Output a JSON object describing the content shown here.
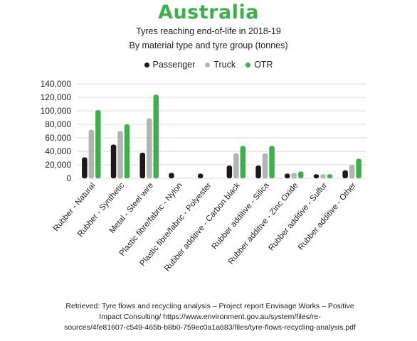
{
  "chart_data": {
    "type": "bar",
    "title": "Australia",
    "subtitle_line1": "Tyres reaching end-of-life in 2018-19",
    "subtitle_line2": "By material type and tyre group (tonnes)",
    "categories": [
      "Rubber - Natural",
      "Rubber - Synthetic",
      "Metal - Steel wire",
      "Plastic fibre/fabric - Nylon",
      "Plastic fibre/fabric - Polyester",
      "Rubber additive - Carbon black",
      "Rubber additive - Silica",
      "Rubber additive - Zinc Oxide",
      "Rubber additive - Sulfur",
      "Rubber additive - Other"
    ],
    "series": [
      {
        "name": "Passenger",
        "color": "#1a1a1a",
        "values": [
          31000,
          50000,
          38000,
          8000,
          7000,
          19000,
          19000,
          7000,
          6000,
          12000
        ]
      },
      {
        "name": "Truck",
        "color": "#b3b3b3",
        "values": [
          72000,
          70000,
          89000,
          0,
          0,
          37000,
          37000,
          8000,
          6000,
          20000
        ]
      },
      {
        "name": "OTR",
        "color": "#3cb04a",
        "values": [
          101000,
          80000,
          124000,
          0,
          0,
          48000,
          48000,
          10000,
          6000,
          29000
        ]
      }
    ],
    "yticks": [
      "0",
      "20,000",
      "40,000",
      "60,000",
      "80,000",
      "100,000",
      "120,000",
      "140,000"
    ],
    "ylim": [
      0,
      140000
    ],
    "grid": true,
    "legend_position": "top-center"
  },
  "source_line1": "Retrieved: Tyre flows and recycling analysis – Project report Envisage Works – Positive",
  "source_line2": "Impact Consulting/ https://www.environment.gov.au/system/files/re-",
  "source_line3": "sources/4fe81607-c549-465b-b8b0-759ec0a1a683/files/tyre-flows-recycling-analysis.pdf"
}
